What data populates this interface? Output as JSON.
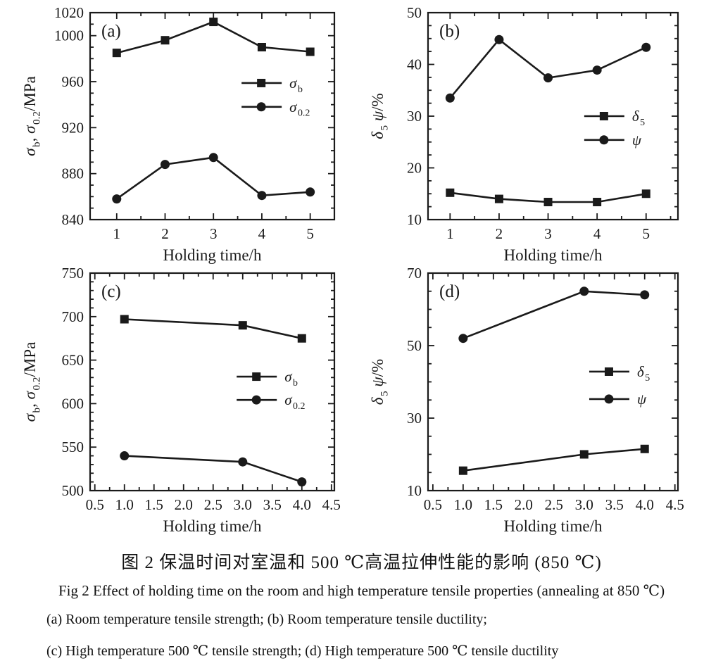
{
  "figure": {
    "caption_cn": "图 2  保温时间对室温和 500 ℃高温拉伸性能的影响 (850 ℃)",
    "caption_en": "Fig 2   Effect of holding time on the room and high temperature tensile properties (annealing at 850 ℃)",
    "caption_ab": "(a) Room temperature tensile strength;  (b) Room temperature tensile ductility;",
    "caption_cd": "(c) High temperature 500 ℃ tensile strength;  (d) High temperature 500 ℃ tensile ductility"
  },
  "chart_data": [
    {
      "id": "a",
      "type": "line",
      "panel_label": "(a)",
      "xlabel": "Holding time/h",
      "ylabel": "σ_b, σ_0.2/MPa",
      "ylabel_parts": [
        {
          "t": "σ",
          "i": true
        },
        {
          "t": "b",
          "sub": true
        },
        {
          "t": ", "
        },
        {
          "t": "σ",
          "i": true
        },
        {
          "t": "0.2",
          "sub": true
        },
        {
          "t": "/MPa"
        }
      ],
      "xlim": [
        0.45,
        5.5
      ],
      "ylim": [
        840,
        1020
      ],
      "xticks": [
        1,
        2,
        3,
        4,
        5
      ],
      "xtick_labels": [
        "1",
        "2",
        "3",
        "4",
        "5"
      ],
      "yticks": [
        840,
        880,
        920,
        960,
        1000,
        1020
      ],
      "ytick_labels": [
        "840",
        "880",
        "920",
        "960",
        "1000",
        "1020"
      ],
      "x_minor_step": 0.5,
      "y_minor_step": 10,
      "grid": false,
      "color": "#1a1a1a",
      "legend_position": "center-right",
      "legend_frac": {
        "fx": 0.62,
        "fy": 0.34,
        "row_gap": 0.115
      },
      "series": [
        {
          "name": "σ_b",
          "label_parts": [
            {
              "t": "σ",
              "i": true
            },
            {
              "t": "b",
              "sub": true
            }
          ],
          "marker": "square",
          "x": [
            1,
            2,
            3,
            4,
            5
          ],
          "y": [
            985,
            996,
            1012,
            990,
            986
          ]
        },
        {
          "name": "σ_0.2",
          "label_parts": [
            {
              "t": "σ",
              "i": true
            },
            {
              "t": "0.2",
              "sub": true
            }
          ],
          "marker": "circle",
          "x": [
            1,
            2,
            3,
            4,
            5
          ],
          "y": [
            858,
            888,
            894,
            861,
            864
          ]
        }
      ]
    },
    {
      "id": "b",
      "type": "line",
      "panel_label": "(b)",
      "xlabel": "Holding time/h",
      "ylabel": "δ_5 ψ/%",
      "ylabel_parts": [
        {
          "t": "δ",
          "i": true
        },
        {
          "t": "5",
          "sub": true
        },
        {
          "t": " "
        },
        {
          "t": "ψ",
          "i": true
        },
        {
          "t": "/%"
        }
      ],
      "xlim": [
        0.55,
        5.65
      ],
      "ylim": [
        10,
        50
      ],
      "xticks": [
        1,
        2,
        3,
        4,
        5
      ],
      "xtick_labels": [
        "1",
        "2",
        "3",
        "4",
        "5"
      ],
      "yticks": [
        10,
        20,
        30,
        40,
        50
      ],
      "ytick_labels": [
        "10",
        "20",
        "30",
        "40",
        "50"
      ],
      "x_minor_step": 0.5,
      "y_minor_step": 2.5,
      "grid": false,
      "color": "#1a1a1a",
      "legend_position": "center-right",
      "legend_frac": {
        "fx": 0.625,
        "fy": 0.5,
        "row_gap": 0.115
      },
      "series": [
        {
          "name": "δ_5",
          "label_parts": [
            {
              "t": "δ",
              "i": true
            },
            {
              "t": "5",
              "sub": true
            }
          ],
          "marker": "square",
          "x": [
            1,
            2,
            3,
            4,
            5
          ],
          "y": [
            15.2,
            14,
            13.4,
            13.4,
            15
          ]
        },
        {
          "name": "ψ",
          "label_parts": [
            {
              "t": "ψ",
              "i": true
            }
          ],
          "marker": "circle",
          "x": [
            1,
            2,
            3,
            4,
            5
          ],
          "y": [
            33.5,
            44.8,
            37.4,
            38.9,
            43.3
          ]
        }
      ]
    },
    {
      "id": "c",
      "type": "line",
      "panel_label": "(c)",
      "xlabel": "Holding time/h",
      "ylabel": "σ_b, σ_0.2/MPa",
      "ylabel_parts": [
        {
          "t": "σ",
          "i": true
        },
        {
          "t": "b",
          "sub": true
        },
        {
          "t": ", "
        },
        {
          "t": "σ",
          "i": true
        },
        {
          "t": "0.2",
          "sub": true
        },
        {
          "t": "/MPa"
        }
      ],
      "xlim": [
        0.42,
        4.55
      ],
      "ylim": [
        500,
        750
      ],
      "xticks": [
        0.5,
        1.0,
        1.5,
        2.0,
        2.5,
        3.0,
        3.5,
        4.0,
        4.5
      ],
      "xtick_labels": [
        "0.5",
        "1.0",
        "1.5",
        "2.0",
        "2.5",
        "3.0",
        "3.5",
        "4.0",
        "4.5"
      ],
      "yticks": [
        500,
        550,
        600,
        650,
        700,
        750
      ],
      "ytick_labels": [
        "500",
        "550",
        "600",
        "650",
        "700",
        "750"
      ],
      "x_minor_step": 0.25,
      "y_minor_step": 10,
      "grid": false,
      "color": "#1a1a1a",
      "legend_position": "center-right",
      "legend_frac": {
        "fx": 0.6,
        "fy": 0.476,
        "row_gap": 0.107
      },
      "series": [
        {
          "name": "σ_b",
          "label_parts": [
            {
              "t": "σ",
              "i": true
            },
            {
              "t": "b",
              "sub": true
            }
          ],
          "marker": "square",
          "x": [
            1.0,
            3.0,
            4.0
          ],
          "y": [
            697,
            690,
            675
          ]
        },
        {
          "name": "σ_0.2",
          "label_parts": [
            {
              "t": "σ",
              "i": true
            },
            {
              "t": "0.2",
              "sub": true
            }
          ],
          "marker": "circle",
          "x": [
            1.0,
            3.0,
            4.0
          ],
          "y": [
            540,
            533,
            510
          ]
        }
      ]
    },
    {
      "id": "d",
      "type": "line",
      "panel_label": "(d)",
      "xlabel": "Holding time/h",
      "ylabel": "δ_5 ψ/%",
      "ylabel_parts": [
        {
          "t": "δ",
          "i": true
        },
        {
          "t": "5",
          "sub": true
        },
        {
          "t": " "
        },
        {
          "t": "ψ",
          "i": true
        },
        {
          "t": "/%"
        }
      ],
      "xlim": [
        0.42,
        4.55
      ],
      "ylim": [
        10,
        70
      ],
      "xticks": [
        0.5,
        1.0,
        1.5,
        2.0,
        2.5,
        3.0,
        3.5,
        4.0,
        4.5
      ],
      "xtick_labels": [
        "0.5",
        "1.0",
        "1.5",
        "2.0",
        "2.5",
        "3.0",
        "3.5",
        "4.0",
        "4.5"
      ],
      "yticks": [
        10,
        30,
        50,
        70
      ],
      "ytick_labels": [
        "10",
        "30",
        "50",
        "70"
      ],
      "x_minor_step": 0.25,
      "y_minor_step": 5,
      "grid": false,
      "color": "#1a1a1a",
      "legend_position": "center-right",
      "legend_frac": {
        "fx": 0.645,
        "fy": 0.453,
        "row_gap": 0.126
      },
      "series": [
        {
          "name": "δ_5",
          "label_parts": [
            {
              "t": "δ",
              "i": true
            },
            {
              "t": "5",
              "sub": true
            }
          ],
          "marker": "square",
          "x": [
            1.0,
            3.0,
            4.0
          ],
          "y": [
            15.5,
            20,
            21.5
          ]
        },
        {
          "name": "ψ",
          "label_parts": [
            {
              "t": "ψ",
              "i": true
            }
          ],
          "marker": "circle",
          "x": [
            1.0,
            3.0,
            4.0
          ],
          "y": [
            52,
            65,
            64
          ]
        }
      ]
    }
  ]
}
